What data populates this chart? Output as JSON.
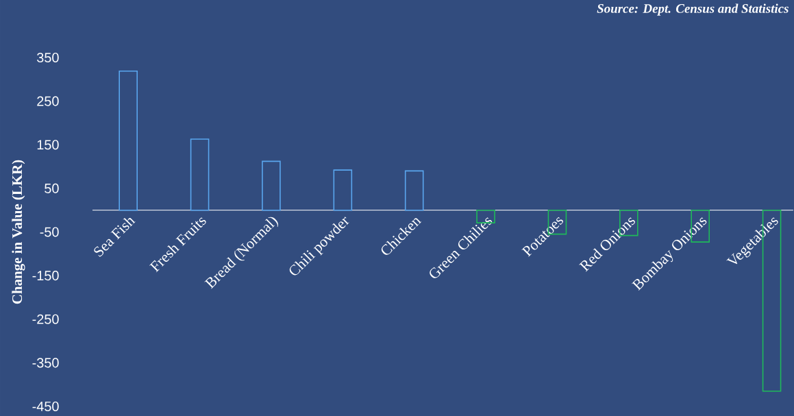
{
  "chart_data": {
    "type": "bar",
    "ylabel": "Change in Value (LKR)",
    "annotations": [
      "Source: Dept. Census and Statistics"
    ],
    "categories": [
      "Sea Fish",
      "Fresh Fruits",
      "Bread (Normal)",
      "Chili powder",
      "Chicken",
      "Green Chilies",
      "Potatoes",
      "Red Onions",
      "Bombay Onions",
      "Vegetables"
    ],
    "values": [
      319,
      163,
      112,
      92,
      90,
      -29,
      -55,
      -58,
      -73,
      -415
    ],
    "colors": [
      "#5aa6ee",
      "#5aa6ee",
      "#5aa6ee",
      "#5aa6ee",
      "#5aa6ee",
      "#1fb95a",
      "#1fb95a",
      "#1fb95a",
      "#1fb95a",
      "#1fb95a"
    ],
    "ylim": [
      -450,
      350
    ],
    "yticks": [
      -450,
      -350,
      -250,
      -150,
      -50,
      50,
      150,
      250,
      350
    ],
    "grid": false
  }
}
